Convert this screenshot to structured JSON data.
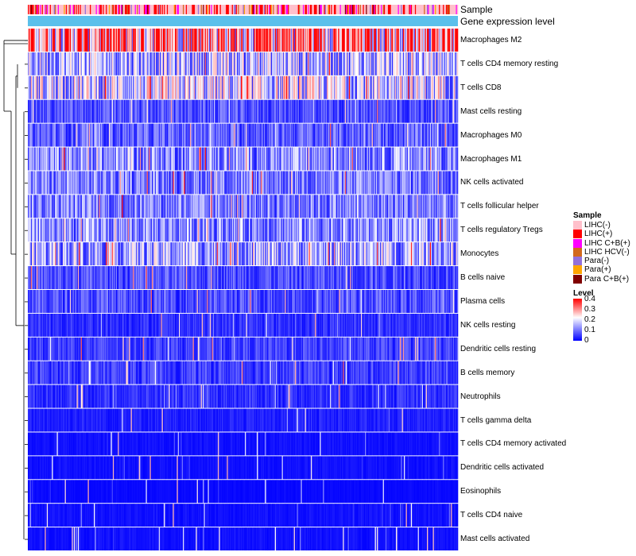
{
  "chart_data": {
    "type": "heatmap",
    "annotation_labels": [
      "Sample",
      "Gene expression level"
    ],
    "rows": [
      {
        "name": "Macrophages M2",
        "mean": 0.26
      },
      {
        "name": "T cells CD4 memory resting",
        "mean": 0.12
      },
      {
        "name": "T cells CD8",
        "mean": 0.14
      },
      {
        "name": "Mast cells resting",
        "mean": 0.05
      },
      {
        "name": "Macrophages M0",
        "mean": 0.06
      },
      {
        "name": "Macrophages M1",
        "mean": 0.09
      },
      {
        "name": "NK cells activated",
        "mean": 0.08
      },
      {
        "name": "T cells follicular helper",
        "mean": 0.08
      },
      {
        "name": "T cells regulatory  Tregs",
        "mean": 0.09
      },
      {
        "name": "Monocytes",
        "mean": 0.11
      },
      {
        "name": "B cells naive",
        "mean": 0.05
      },
      {
        "name": "Plasma cells",
        "mean": 0.05
      },
      {
        "name": "NK cells resting",
        "mean": 0.03
      },
      {
        "name": "Dendritic cells resting",
        "mean": 0.04
      },
      {
        "name": "B cells memory",
        "mean": 0.04
      },
      {
        "name": "Neutrophils",
        "mean": 0.03
      },
      {
        "name": "T cells gamma delta",
        "mean": 0.02
      },
      {
        "name": "T cells CD4 memory activated",
        "mean": 0.01
      },
      {
        "name": "Dendritic cells activated",
        "mean": 0.01
      },
      {
        "name": "Eosinophils",
        "mean": 0.005
      },
      {
        "name": "T cells CD4 naive",
        "mean": 0.01
      },
      {
        "name": "Mast cells activated",
        "mean": 0.01
      }
    ],
    "n_samples": 430,
    "color_scale": {
      "low": "#0000ff",
      "mid": "#ffffff",
      "high": "#ff0000",
      "min": 0,
      "max": 0.4
    },
    "annotation_bar_color": "#5bc0eb"
  },
  "legend": {
    "sample_title": "Sample",
    "samples": [
      {
        "label": "LIHC(-)",
        "color": "#ffc0cb"
      },
      {
        "label": "LIHC(+)",
        "color": "#ff0000"
      },
      {
        "label": "LIHC C+B(+)",
        "color": "#ff00ff"
      },
      {
        "label": "LIHC HCV(-)",
        "color": "#d2691e"
      },
      {
        "label": "Para(-)",
        "color": "#9370db"
      },
      {
        "label": "Para(+)",
        "color": "#ffa500"
      },
      {
        "label": "Para C+B(+)",
        "color": "#800000"
      }
    ],
    "level_title": "Level",
    "level_ticks": [
      "0.4",
      "0.3",
      "0.2",
      "0.1",
      "0"
    ]
  }
}
